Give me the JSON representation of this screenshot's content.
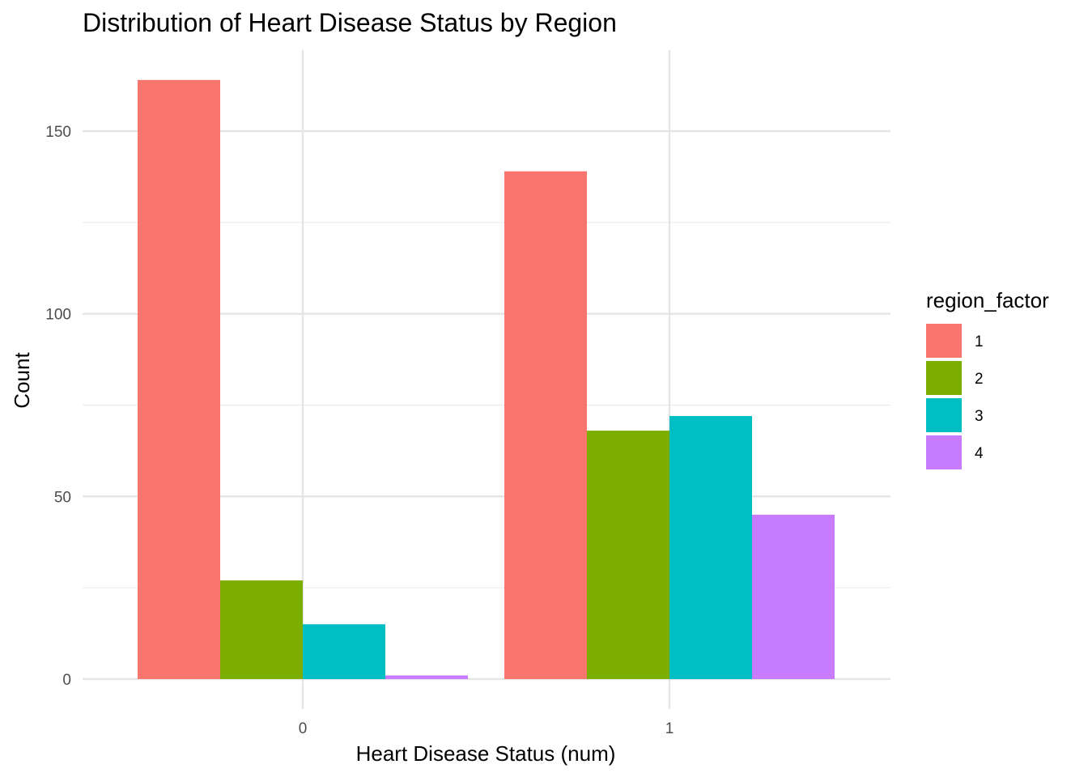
{
  "chart_data": {
    "type": "bar",
    "title": "Distribution of Heart Disease Status by Region",
    "xlabel": "Heart Disease Status (num)",
    "ylabel": "Count",
    "categories": [
      "0",
      "1"
    ],
    "series": [
      {
        "name": "1",
        "color": "#F8766D",
        "values": [
          164,
          139
        ]
      },
      {
        "name": "2",
        "color": "#7CAE00",
        "values": [
          27,
          68
        ]
      },
      {
        "name": "3",
        "color": "#00BFC4",
        "values": [
          15,
          72
        ]
      },
      {
        "name": "4",
        "color": "#C77CFF",
        "values": [
          1,
          45
        ]
      }
    ],
    "ylim": [
      0,
      172
    ],
    "yticks": [
      0,
      50,
      100,
      150
    ],
    "ytick_labels": [
      "0",
      "50",
      "100",
      "150"
    ],
    "grid": true,
    "legend_title": "region_factor",
    "legend_position": "right"
  }
}
